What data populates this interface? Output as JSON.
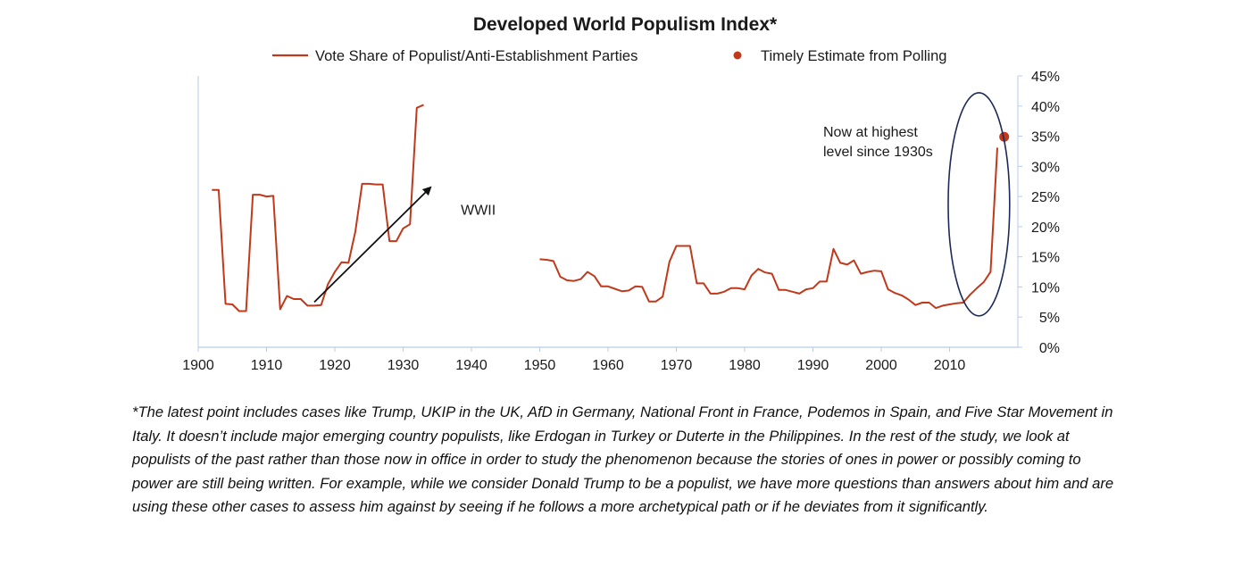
{
  "chart_data": {
    "type": "line",
    "title": "Developed World Populism Index*",
    "legend": {
      "placement": "top",
      "entries": [
        {
          "label": "Vote Share of Populist/Anti-Establishment Parties",
          "marker": "line"
        },
        {
          "label": "Timely Estimate from Polling",
          "marker": "dot"
        }
      ]
    },
    "xlim": [
      1900,
      2020
    ],
    "ylim": [
      0,
      45
    ],
    "x_ticks": [
      "1900",
      "1910",
      "1920",
      "1930",
      "1940",
      "1950",
      "1960",
      "1970",
      "1980",
      "1990",
      "2000",
      "2010"
    ],
    "y_ticks": [
      "0%",
      "5%",
      "10%",
      "15%",
      "20%",
      "25%",
      "30%",
      "35%",
      "40%",
      "45%"
    ],
    "series": [
      {
        "name": "Vote Share of Populist/Anti-Establishment Parties",
        "color": "#c0391b",
        "segments": [
          [
            [
              1902,
              26.1
            ],
            [
              1903,
              26.1
            ],
            [
              1904,
              7.2
            ],
            [
              1905,
              7.1
            ],
            [
              1906,
              6.0
            ],
            [
              1907,
              6.0
            ],
            [
              1908,
              25.3
            ],
            [
              1909,
              25.3
            ],
            [
              1910,
              25.0
            ],
            [
              1911,
              25.1
            ],
            [
              1912,
              6.3
            ],
            [
              1913,
              8.5
            ],
            [
              1914,
              8.0
            ],
            [
              1915,
              8.0
            ],
            [
              1916,
              6.9
            ],
            [
              1917,
              6.9
            ],
            [
              1918,
              7.0
            ],
            [
              1919,
              10.5
            ],
            [
              1920,
              12.5
            ],
            [
              1921,
              14.1
            ],
            [
              1922,
              14.0
            ],
            [
              1923,
              19.2
            ],
            [
              1924,
              27.1
            ],
            [
              1925,
              27.1
            ],
            [
              1926,
              27.0
            ],
            [
              1927,
              27.0
            ],
            [
              1928,
              17.6
            ],
            [
              1929,
              17.6
            ],
            [
              1930,
              19.7
            ],
            [
              1931,
              20.4
            ],
            [
              1932,
              39.7
            ],
            [
              1933,
              40.2
            ]
          ],
          [
            [
              1950,
              14.6
            ],
            [
              1951,
              14.5
            ],
            [
              1952,
              14.3
            ],
            [
              1953,
              11.7
            ],
            [
              1954,
              11.1
            ],
            [
              1955,
              11.0
            ],
            [
              1956,
              11.3
            ],
            [
              1957,
              12.5
            ],
            [
              1958,
              11.8
            ],
            [
              1959,
              10.1
            ],
            [
              1960,
              10.1
            ],
            [
              1961,
              9.7
            ],
            [
              1962,
              9.3
            ],
            [
              1963,
              9.4
            ],
            [
              1964,
              10.1
            ],
            [
              1965,
              10.0
            ],
            [
              1966,
              7.6
            ],
            [
              1967,
              7.6
            ],
            [
              1968,
              8.4
            ],
            [
              1969,
              14.2
            ],
            [
              1970,
              16.8
            ],
            [
              1971,
              16.8
            ],
            [
              1972,
              16.8
            ],
            [
              1973,
              10.6
            ],
            [
              1974,
              10.6
            ],
            [
              1975,
              8.9
            ],
            [
              1976,
              8.9
            ],
            [
              1977,
              9.2
            ],
            [
              1978,
              9.8
            ],
            [
              1979,
              9.8
            ],
            [
              1980,
              9.6
            ],
            [
              1981,
              11.9
            ],
            [
              1982,
              13.0
            ],
            [
              1983,
              12.4
            ],
            [
              1984,
              12.2
            ],
            [
              1985,
              9.5
            ],
            [
              1986,
              9.5
            ],
            [
              1987,
              9.2
            ],
            [
              1988,
              8.9
            ],
            [
              1989,
              9.6
            ],
            [
              1990,
              9.8
            ],
            [
              1991,
              10.9
            ],
            [
              1992,
              10.9
            ],
            [
              1993,
              16.3
            ],
            [
              1994,
              14.0
            ],
            [
              1995,
              13.7
            ],
            [
              1996,
              14.4
            ],
            [
              1997,
              12.2
            ],
            [
              1998,
              12.5
            ],
            [
              1999,
              12.7
            ],
            [
              2000,
              12.6
            ],
            [
              2001,
              9.6
            ],
            [
              2002,
              9.0
            ],
            [
              2003,
              8.6
            ],
            [
              2004,
              7.9
            ],
            [
              2005,
              7.0
            ],
            [
              2006,
              7.4
            ],
            [
              2007,
              7.4
            ],
            [
              2008,
              6.5
            ],
            [
              2009,
              6.9
            ],
            [
              2010,
              7.1
            ],
            [
              2011,
              7.3
            ],
            [
              2012,
              7.4
            ],
            [
              2013,
              8.7
            ],
            [
              2014,
              9.8
            ],
            [
              2015,
              10.8
            ],
            [
              2016,
              12.5
            ],
            [
              2017,
              33.1
            ]
          ]
        ]
      },
      {
        "name": "Timely Estimate from Polling",
        "color": "#c0391b",
        "points": [
          [
            2018,
            34.9
          ]
        ]
      }
    ],
    "annotations": [
      {
        "text": "WWII",
        "x": 1941,
        "y": 22
      },
      {
        "text_lines": [
          "Now at highest",
          "level since 1930s"
        ]
      }
    ],
    "arrow": {
      "from": [
        1917,
        7.5
      ],
      "to": [
        1934,
        26.5
      ]
    },
    "ellipse_highlight": {
      "center": [
        2014.3,
        23.7
      ],
      "rx_years": 4.5,
      "ry_pct": 18.5
    },
    "grid": false
  },
  "footnote": "*The latest point includes cases like Trump, UKIP in the UK, AfD in Germany, National Front in France, Podemos in Spain, and Five Star Movement in Italy. It doesn’t include major emerging country populists, like Erdogan in Turkey or Duterte in the Philippines. In the rest of the study, we look at populists of the past rather than those now in office in order to study the phenomenon because the stories of ones in power or possibly coming to power are still being written.  For example, while we consider Donald Trump to be a populist, we have more questions than answers about him and are using these other cases to assess him against by seeing if he follows a more archetypical path or if he deviates from it significantly."
}
